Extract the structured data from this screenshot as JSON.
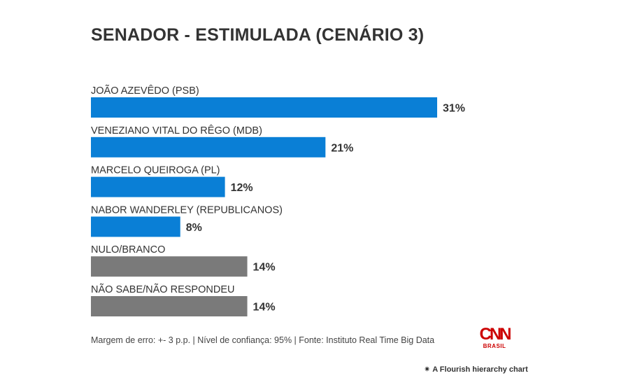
{
  "title": "SENADOR - ESTIMULADA (CENÁRIO 3)",
  "footer": "Margem de erro: +- 3 p.p. | Nível de confiança: 95% | Fonte: Instituto Real Time Big Data",
  "logo": {
    "word": "CNN",
    "sub": "BRASIL",
    "color": "#cc0000"
  },
  "flourish": {
    "icon": "flourish-star-icon",
    "text": "A Flourish hierarchy chart"
  },
  "chart_data": {
    "type": "bar",
    "orientation": "horizontal",
    "categories": [
      "JOÃO AZEVÊDO (PSB)",
      "VENEZIANO VITAL DO RÊGO (MDB)",
      "MARCELO QUEIROGA (PL)",
      "NABOR WANDERLEY (REPUBLICANOS)",
      "NULO/BRANCO",
      "NÃO SABE/NÃO RESPONDEU"
    ],
    "values": [
      31,
      21,
      12,
      8,
      14,
      14
    ],
    "value_labels": [
      "31%",
      "21%",
      "12%",
      "8%",
      "14%",
      "14%"
    ],
    "colors": [
      "#0a7fd6",
      "#0a7fd6",
      "#0a7fd6",
      "#0a7fd6",
      "#7a7a7a",
      "#7a7a7a"
    ],
    "xlim": [
      0,
      31
    ],
    "grid": false
  }
}
